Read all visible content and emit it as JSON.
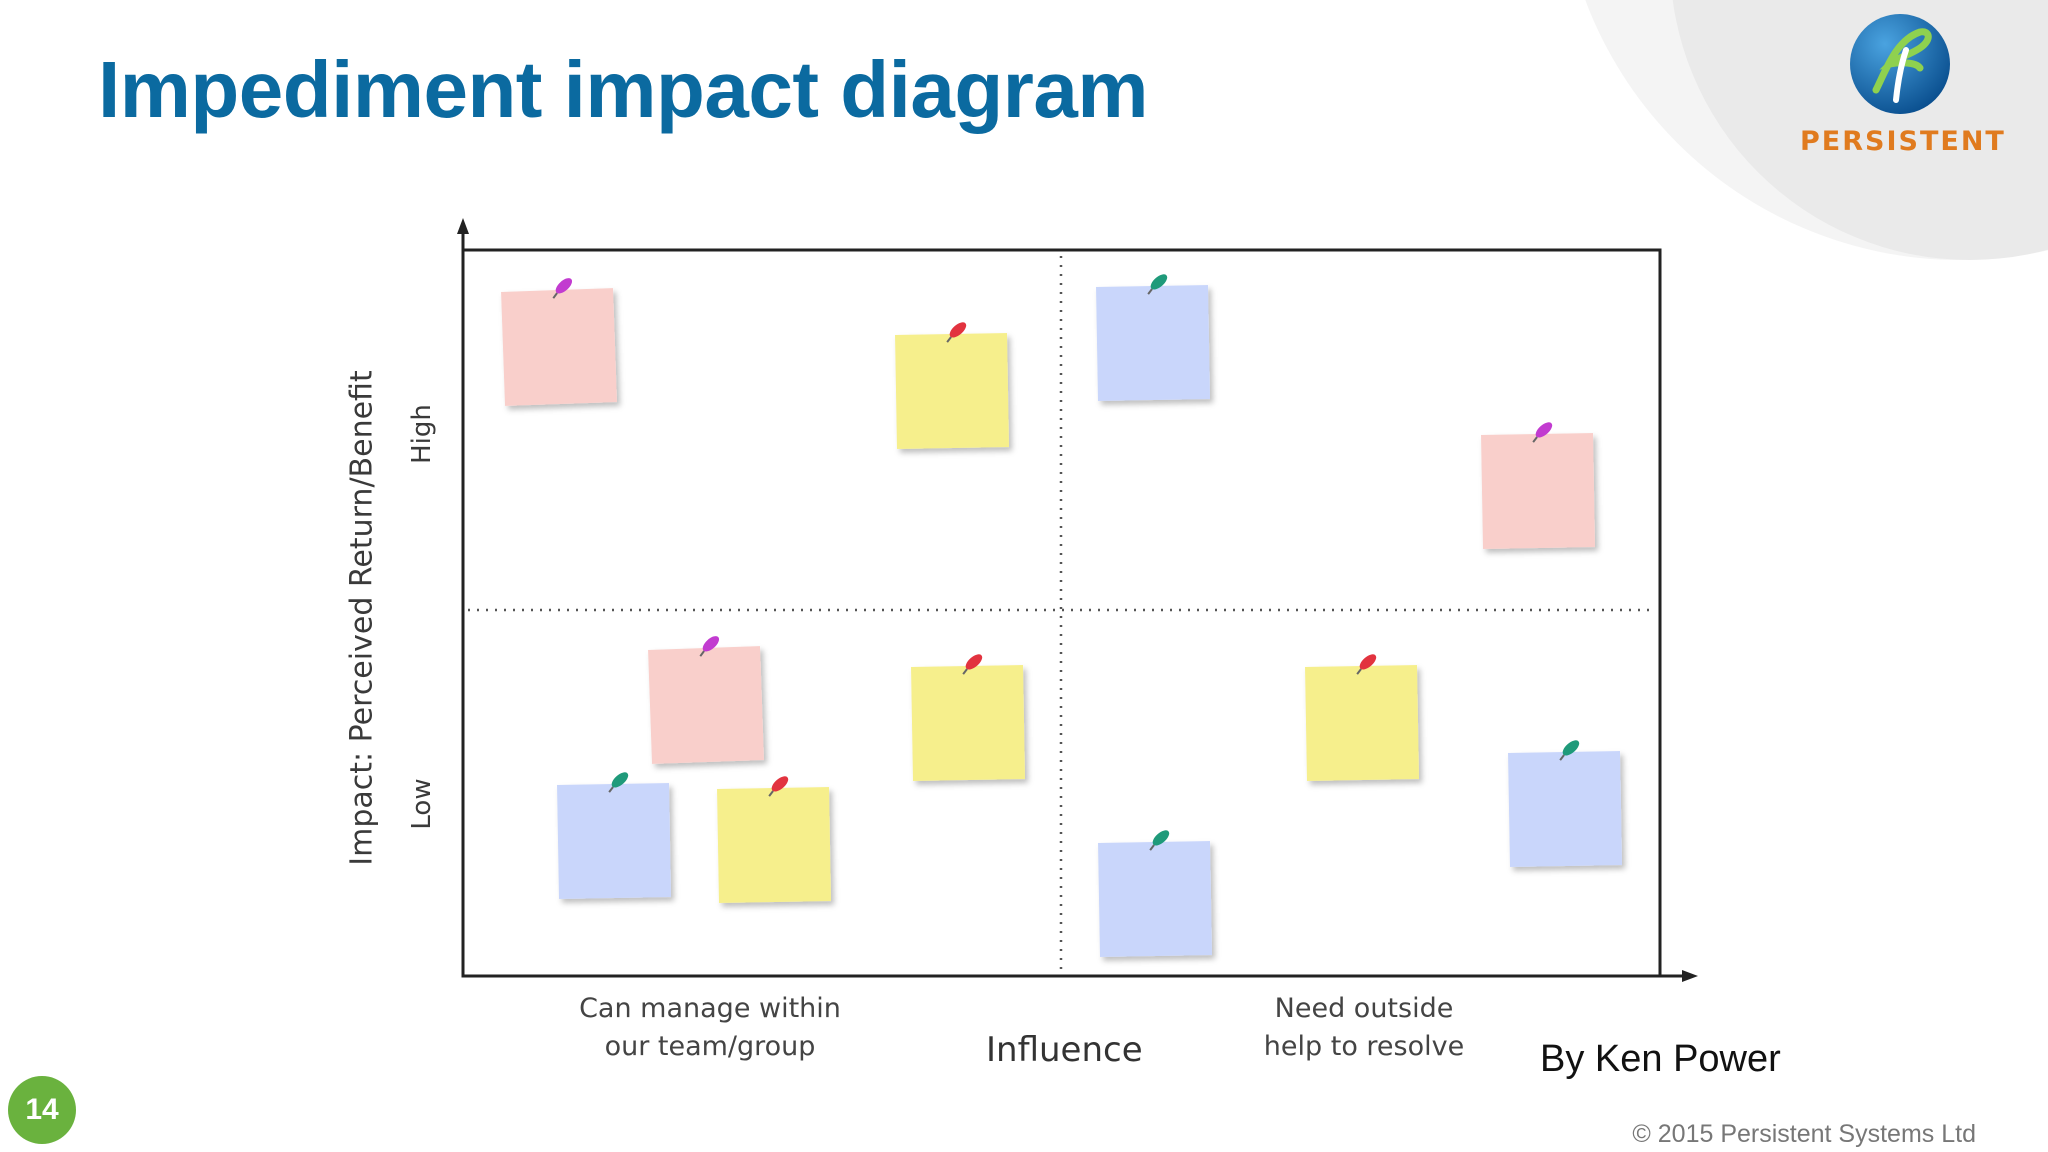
{
  "slide": {
    "title": "Impediment impact diagram",
    "page_number": "14",
    "author": "By Ken Power",
    "copyright": "© 2015 Persistent Systems Ltd"
  },
  "logo": {
    "text": "PERSISTENT",
    "icon": "persistent-logo-icon"
  },
  "diagram": {
    "y_axis_label": "Impact: Perceived Return/Benefit",
    "y_high": "High",
    "y_low": "Low",
    "x_axis_label": "Influence",
    "x_left_lines": [
      "Can manage within",
      "our team/group"
    ],
    "x_right_lines": [
      "Need outside",
      "help to resolve"
    ],
    "notes": [
      {
        "color": "pink",
        "quadrant": "top-left"
      },
      {
        "color": "yellow",
        "quadrant": "top-left"
      },
      {
        "color": "blue",
        "quadrant": "top-right"
      },
      {
        "color": "pink",
        "quadrant": "top-right"
      },
      {
        "color": "pink",
        "quadrant": "bottom-left"
      },
      {
        "color": "yellow",
        "quadrant": "bottom-left"
      },
      {
        "color": "blue",
        "quadrant": "bottom-left"
      },
      {
        "color": "yellow",
        "quadrant": "bottom-left"
      },
      {
        "color": "yellow",
        "quadrant": "bottom-right"
      },
      {
        "color": "blue",
        "quadrant": "bottom-right"
      },
      {
        "color": "blue",
        "quadrant": "bottom-right"
      }
    ]
  },
  "colors": {
    "title": "#0b6aa0",
    "logo_text": "#e07b1f",
    "badge": "#6ab23e",
    "note_pink": "#f9cfcb",
    "note_yellow": "#f6ef8c",
    "note_blue": "#c9d6fb",
    "pin_pink": "#c23bd0",
    "pin_yellow": "#e2333f",
    "pin_blue": "#1f9a7a"
  }
}
